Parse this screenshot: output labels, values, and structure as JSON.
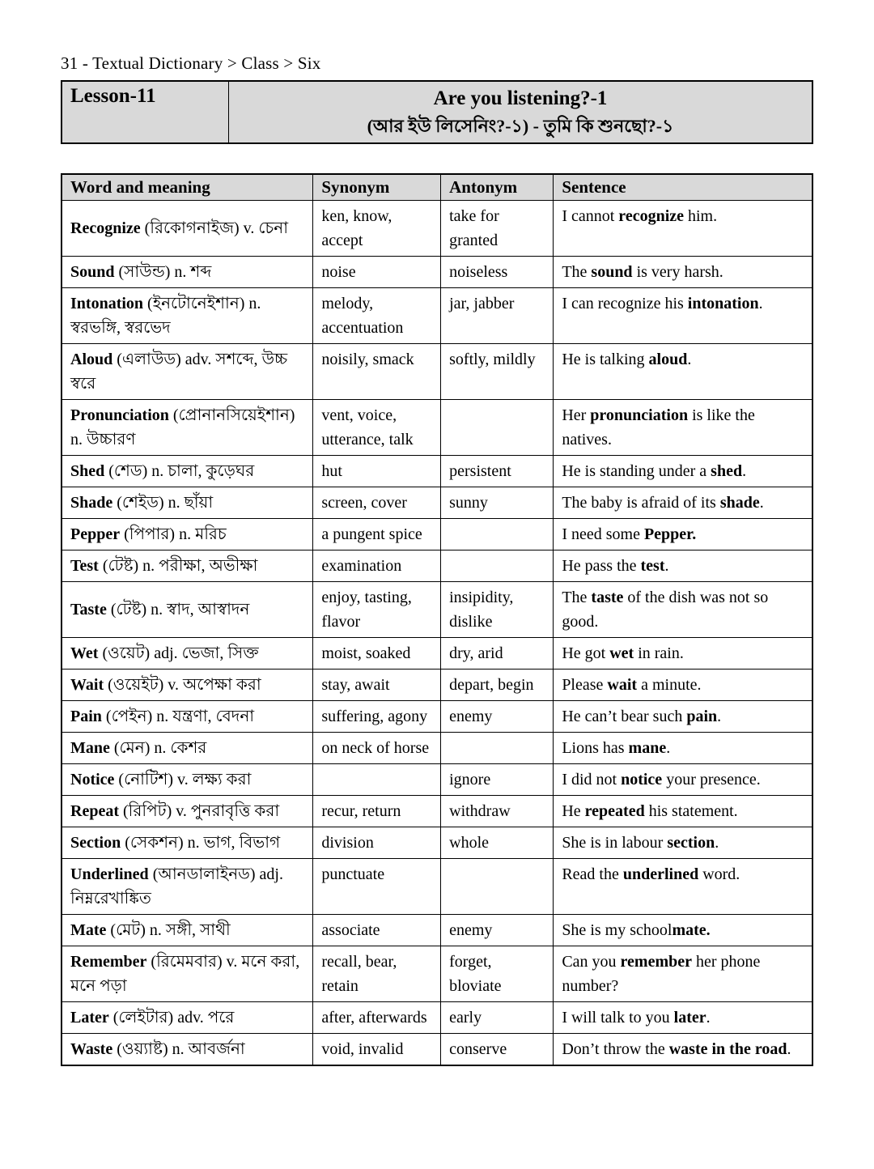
{
  "breadcrumb": "31 - Textual Dictionary > Class > Six",
  "lesson": {
    "number": "Lesson-11",
    "title_en": "Are you listening?-1",
    "title_bn": "(আর ইউ লিসেনিং?-১) - তুমি কি শুনছো?-১"
  },
  "table": {
    "headers": [
      "Word and meaning",
      "Synonym",
      "Antonym",
      "Sentence"
    ],
    "rows": [
      {
        "word": "Recognize",
        "word_rest": " (রিকোগনাইজ) v. চেনা",
        "synonym": "ken, know, accept",
        "antonym": "take for granted",
        "sentence": [
          [
            "I cannot ",
            0
          ],
          [
            "recognize",
            1
          ],
          [
            " him.",
            0
          ]
        ]
      },
      {
        "word": "Sound",
        "word_rest": " (সাউন্ড) n. শব্দ",
        "synonym": "noise",
        "antonym": "noiseless",
        "sentence": [
          [
            "The ",
            0
          ],
          [
            "sound",
            1
          ],
          [
            " is very harsh.",
            0
          ]
        ]
      },
      {
        "word": "Intonation",
        "word_rest": " (ইনটোনেইশান) n. স্বরভঙ্গি, স্বরভেদ",
        "synonym": "melody, accentuation",
        "antonym": "jar, jabber",
        "sentence": [
          [
            "I can recognize his ",
            0
          ],
          [
            "intonation",
            1
          ],
          [
            ".",
            0
          ]
        ]
      },
      {
        "word": "Aloud",
        "word_rest": " (এলাউড) adv. সশব্দে, উচ্চ স্বরে",
        "synonym": "noisily, smack",
        "antonym": "softly, mildly",
        "sentence": [
          [
            "He is talking ",
            0
          ],
          [
            "aloud",
            1
          ],
          [
            ".",
            0
          ]
        ]
      },
      {
        "word": "Pronunciation",
        "word_rest": " (প্রোনানসিয়েইশান) n. উচ্চারণ",
        "synonym": "vent, voice, utterance, talk",
        "antonym": "",
        "sentence": [
          [
            "Her ",
            0
          ],
          [
            "pronunciation",
            1
          ],
          [
            " is like the natives.",
            0
          ]
        ]
      },
      {
        "word": "Shed",
        "word_rest": " (শেড) n. চালা, কুড়েঘর",
        "synonym": "hut",
        "antonym": "persistent",
        "sentence": [
          [
            "He is standing under a ",
            0
          ],
          [
            "shed",
            1
          ],
          [
            ".",
            0
          ]
        ]
      },
      {
        "word": "Shade",
        "word_rest": " (শেইড) n. ছাঁয়া",
        "synonym": "screen, cover",
        "antonym": "sunny",
        "sentence": [
          [
            "The baby is afraid of its ",
            0
          ],
          [
            "shade",
            1
          ],
          [
            ".",
            0
          ]
        ]
      },
      {
        "word": "Pepper",
        "word_rest": " (পিপার) n. মরিচ",
        "synonym": "a pungent spice",
        "antonym": "",
        "sentence": [
          [
            "I need some ",
            0
          ],
          [
            "Pepper.",
            1
          ]
        ]
      },
      {
        "word": "Test",
        "word_rest": " (টেষ্ট) n. পরীক্ষা, অভীক্ষা",
        "synonym": "examination",
        "antonym": "",
        "sentence": [
          [
            "He pass the ",
            0
          ],
          [
            "test",
            1
          ],
          [
            ".",
            0
          ]
        ]
      },
      {
        "word": "Taste",
        "word_rest": " (টেষ্ট) n. স্বাদ, আস্বাদন",
        "synonym": "enjoy, tasting, flavor",
        "antonym": "insipidity, dislike",
        "sentence": [
          [
            "The ",
            0
          ],
          [
            "taste",
            1
          ],
          [
            " of the dish was not so good.",
            0
          ]
        ]
      },
      {
        "word": "Wet",
        "word_rest": " (ওয়েট) adj. ভেজা, সিক্ত",
        "synonym": "moist, soaked",
        "antonym": "dry, arid",
        "sentence": [
          [
            "He got ",
            0
          ],
          [
            "wet",
            1
          ],
          [
            " in rain.",
            0
          ]
        ]
      },
      {
        "word": "Wait",
        "word_rest": " (ওয়েইট) v. অপেক্ষা করা",
        "synonym": "stay, await",
        "antonym": "depart, begin",
        "sentence": [
          [
            "Please ",
            0
          ],
          [
            "wait",
            1
          ],
          [
            " a minute.",
            0
          ]
        ]
      },
      {
        "word": "Pain",
        "word_rest": " (পেইন) n. যন্ত্রণা, বেদনা",
        "synonym": "suffering, agony",
        "antonym": "enemy",
        "sentence": [
          [
            "He can’t bear such ",
            0
          ],
          [
            "pain",
            1
          ],
          [
            ".",
            0
          ]
        ]
      },
      {
        "word": "Mane",
        "word_rest": " (মেন) n. কেশর",
        "synonym": "on neck of horse",
        "antonym": "",
        "sentence": [
          [
            "Lions has ",
            0
          ],
          [
            "mane",
            1
          ],
          [
            ".",
            0
          ]
        ]
      },
      {
        "word": "Notice",
        "word_rest": " (নোটিশ) v. লক্ষ্য করা",
        "synonym": "",
        "antonym": "ignore",
        "sentence": [
          [
            "I did not ",
            0
          ],
          [
            "notice",
            1
          ],
          [
            " your presence.",
            0
          ]
        ]
      },
      {
        "word": "Repeat",
        "word_rest": " (রিপিট) v. পুনরাবৃত্তি করা",
        "synonym": "recur, return",
        "antonym": "withdraw",
        "sentence": [
          [
            "He ",
            0
          ],
          [
            "repeated",
            1
          ],
          [
            " his statement.",
            0
          ]
        ]
      },
      {
        "word": "Section",
        "word_rest": " (সেকশন) n. ভাগ, বিভাগ",
        "synonym": "division",
        "antonym": "whole",
        "sentence": [
          [
            "She is in labour ",
            0
          ],
          [
            "section",
            1
          ],
          [
            ".",
            0
          ]
        ]
      },
      {
        "word": "Underlined",
        "word_rest": " (আনডালাইনড) adj. নিম্নরেখাঙ্কিত",
        "synonym": "punctuate",
        "antonym": "",
        "sentence": [
          [
            "Read the ",
            0
          ],
          [
            "underlined",
            1
          ],
          [
            " word.",
            0
          ]
        ]
      },
      {
        "word": "Mate",
        "word_rest": " (মেট) n. সঙ্গী, সাথী",
        "synonym": "associate",
        "antonym": "enemy",
        "sentence": [
          [
            "She is my school",
            0
          ],
          [
            "mate.",
            1
          ]
        ]
      },
      {
        "word": "Remember",
        "word_rest": " (রিমেমবার) v. মনে করা, মনে পড়া",
        "synonym": "recall, bear, retain",
        "antonym": "forget, bloviate",
        "sentence": [
          [
            "Can you ",
            0
          ],
          [
            "remember",
            1
          ],
          [
            " her phone number?",
            0
          ]
        ]
      },
      {
        "word": "Later",
        "word_rest": " (লেইটার) adv. পরে",
        "synonym": "after, afterwards",
        "antonym": "early",
        "sentence": [
          [
            "I will talk to you ",
            0
          ],
          [
            "later",
            1
          ],
          [
            ".",
            0
          ]
        ]
      },
      {
        "word": "Waste",
        "word_rest": " (ওয়্যাষ্ট) n. আবর্জনা",
        "synonym": "void, invalid",
        "antonym": "conserve",
        "sentence": [
          [
            "Don’t throw the ",
            0
          ],
          [
            "waste in the road",
            1
          ],
          [
            ".",
            0
          ]
        ]
      }
    ]
  },
  "colors": {
    "header_bg": "#d9d9d9",
    "border": "#000000",
    "text": "#000000",
    "page_bg": "#ffffff"
  }
}
